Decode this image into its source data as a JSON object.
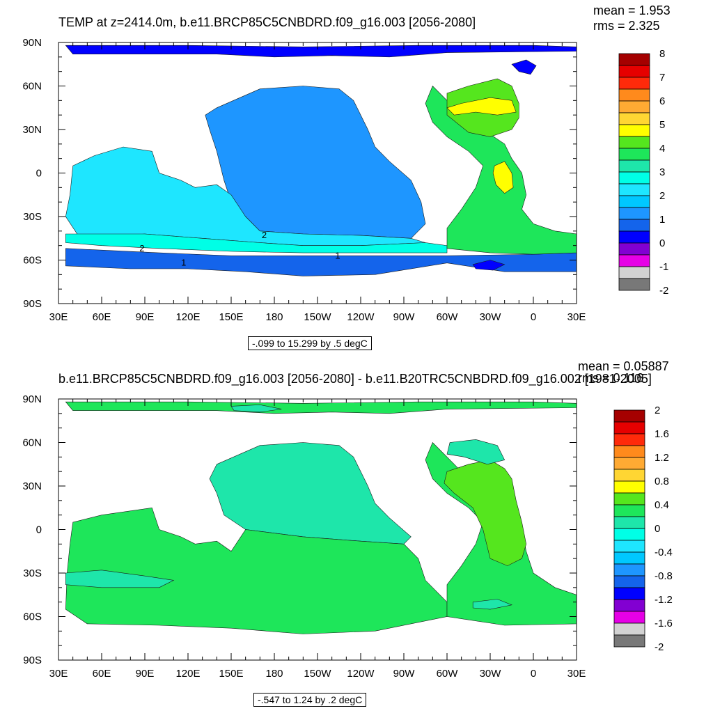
{
  "colors": {
    "land": "#ffffff",
    "frame": "#000000",
    "contour": "#1a1a1a"
  },
  "chart_data": [
    {
      "type": "heatmap",
      "title": "TEMP at z=2414.0m, b.e11.BRCP85C5CNBDRD.f09_g16.003 [2056-2080]",
      "stats": {
        "mean_label": "mean = 1.953",
        "rms_label": "rms = 2.325",
        "mean": 1.953,
        "rms": 2.325
      },
      "xlabel": "",
      "ylabel": "",
      "x_ticks": [
        "30E",
        "60E",
        "90E",
        "120E",
        "150E",
        "180",
        "150W",
        "120W",
        "90W",
        "60W",
        "30W",
        "0",
        "30E"
      ],
      "y_ticks": [
        "90N",
        "60N",
        "30N",
        "0",
        "30S",
        "60S",
        "90S"
      ],
      "xlim": [
        30,
        390
      ],
      "ylim": [
        -90,
        90
      ],
      "note": "-.099 to 15.299 by .5 degC",
      "colorbar": {
        "labels": [
          "8",
          "7",
          "6",
          "5",
          "4",
          "3",
          "2",
          "1",
          "0",
          "-1",
          "-2"
        ],
        "colors": [
          "#a50000",
          "#e60000",
          "#ff2a0a",
          "#ff8a1c",
          "#ffaa33",
          "#ffd633",
          "#ffff00",
          "#55e61e",
          "#1ee65a",
          "#1ee6aa",
          "#00ffe6",
          "#1ee6ff",
          "#00c8ff",
          "#1e96ff",
          "#1464eb",
          "#0000ff",
          "#8200d2",
          "#e600e6",
          "#d2d2d2",
          "#787878"
        ]
      },
      "contour_labels": [
        {
          "text": "2",
          "lon": 173,
          "lat": -43
        },
        {
          "text": "2",
          "lon": 88,
          "lat": -52
        },
        {
          "text": "1",
          "lon": 117,
          "lat": -62
        },
        {
          "text": "1",
          "lon": 224,
          "lat": -57
        }
      ]
    },
    {
      "type": "heatmap",
      "title": "b.e11.BRCP85C5CNBDRD.f09_g16.003 [2056-2080] - b.e11.B20TRC5CNBDRD.f09_g16.002 [1981-2005]",
      "stats": {
        "mean_label": "mean = 0.05887",
        "rms_label": "rms = 0.116",
        "mean": 0.05887,
        "rms": 0.116
      },
      "xlabel": "",
      "ylabel": "",
      "x_ticks": [
        "30E",
        "60E",
        "90E",
        "120E",
        "150E",
        "180",
        "150W",
        "120W",
        "90W",
        "60W",
        "30W",
        "0",
        "30E"
      ],
      "y_ticks": [
        "90N",
        "60N",
        "30N",
        "0",
        "30S",
        "60S",
        "90S"
      ],
      "xlim": [
        30,
        390
      ],
      "ylim": [
        -90,
        90
      ],
      "note": "-.547 to 1.24 by .2 degC",
      "colorbar": {
        "labels": [
          "2",
          "1.6",
          "1.2",
          "0.8",
          "0.4",
          "0",
          "-0.4",
          "-0.8",
          "-1.2",
          "-1.6",
          "-2"
        ],
        "colors": [
          "#a50000",
          "#e60000",
          "#ff2a0a",
          "#ff8a1c",
          "#ffaa33",
          "#ffd633",
          "#ffff00",
          "#55e61e",
          "#1ee65a",
          "#1ee6aa",
          "#00ffe6",
          "#1ee6ff",
          "#00c8ff",
          "#1e96ff",
          "#1464eb",
          "#0000ff",
          "#8200d2",
          "#e600e6",
          "#d2d2d2",
          "#787878"
        ]
      },
      "contour_labels": []
    }
  ]
}
